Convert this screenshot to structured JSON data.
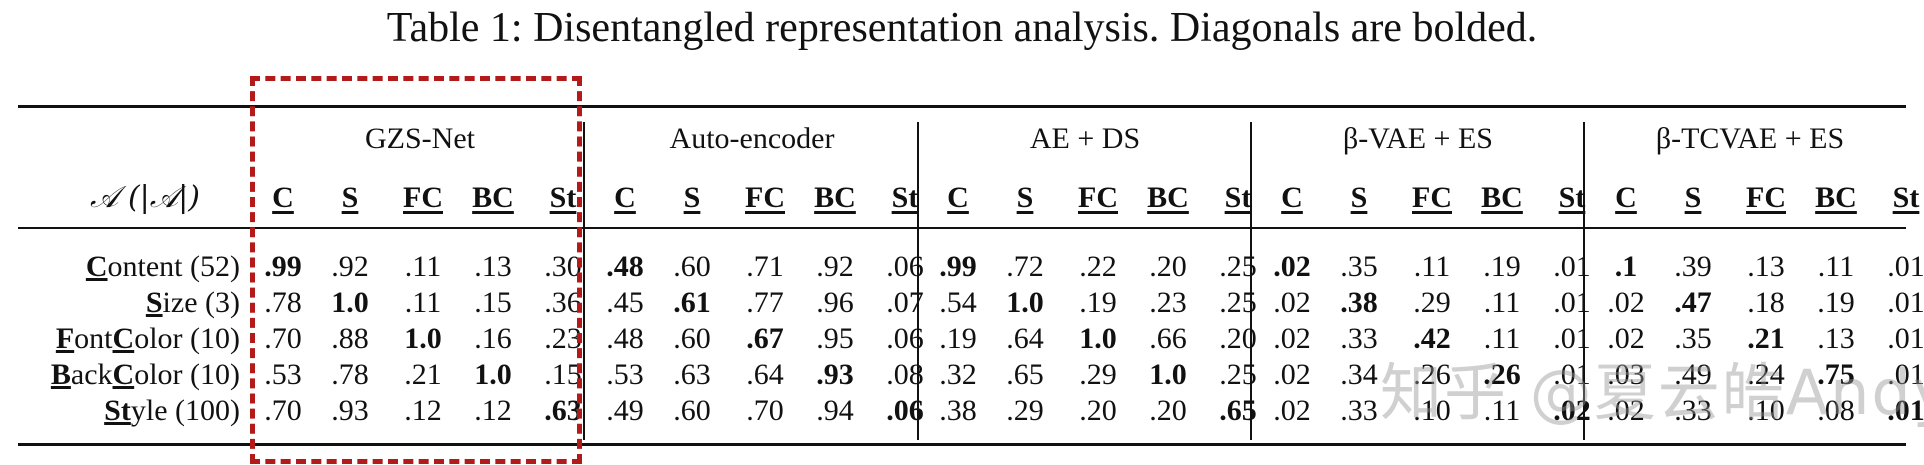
{
  "caption": "Table 1: Disentangled representation analysis. Diagonals are bolded.",
  "row_header": "𝒜 (|𝒜|)",
  "groups": [
    {
      "name": "GZS-Net"
    },
    {
      "name": "Auto-encoder"
    },
    {
      "name": "AE + DS"
    },
    {
      "name": "β-VAE + ES"
    },
    {
      "name": "β-TCVAE + ES"
    }
  ],
  "column_labels": [
    "C",
    "S",
    "FC",
    "BC",
    "St"
  ],
  "rows": [
    {
      "prefix": "C",
      "rest": "ontent (52)",
      "label": "Content (52)",
      "values": [
        [
          ".99",
          ".92",
          ".11",
          ".13",
          ".30"
        ],
        [
          ".48",
          ".60",
          ".71",
          ".92",
          ".06"
        ],
        [
          ".99",
          ".72",
          ".22",
          ".20",
          ".25"
        ],
        [
          ".02",
          ".35",
          ".11",
          ".19",
          ".01"
        ],
        [
          ".1",
          ".39",
          ".13",
          ".11",
          ".01"
        ]
      ]
    },
    {
      "prefix": "S",
      "rest": "ize (3)",
      "label": "Size (3)",
      "values": [
        [
          ".78",
          "1.0",
          ".11",
          ".15",
          ".36"
        ],
        [
          ".45",
          ".61",
          ".77",
          ".96",
          ".07"
        ],
        [
          ".54",
          "1.0",
          ".19",
          ".23",
          ".25"
        ],
        [
          ".02",
          ".38",
          ".29",
          ".11",
          ".01"
        ],
        [
          ".02",
          ".47",
          ".18",
          ".19",
          ".01"
        ]
      ]
    },
    {
      "prefix": "F",
      "rest": "ont",
      "prefix2": "C",
      "rest2": "olor (10)",
      "label": "FontColor (10)",
      "values": [
        [
          ".70",
          ".88",
          "1.0",
          ".16",
          ".23"
        ],
        [
          ".48",
          ".60",
          ".67",
          ".95",
          ".06"
        ],
        [
          ".19",
          ".64",
          "1.0",
          ".66",
          ".20"
        ],
        [
          ".02",
          ".33",
          ".42",
          ".11",
          ".01"
        ],
        [
          ".02",
          ".35",
          ".21",
          ".13",
          ".01"
        ]
      ]
    },
    {
      "prefix": "B",
      "rest": "ack",
      "prefix2": "C",
      "rest2": "olor (10)",
      "label": "BackColor (10)",
      "values": [
        [
          ".53",
          ".78",
          ".21",
          "1.0",
          ".15"
        ],
        [
          ".53",
          ".63",
          ".64",
          ".93",
          ".08"
        ],
        [
          ".32",
          ".65",
          ".29",
          "1.0",
          ".25"
        ],
        [
          ".02",
          ".34",
          ".26",
          ".26",
          ".01"
        ],
        [
          ".03",
          ".49",
          ".24",
          ".75",
          ".01"
        ]
      ]
    },
    {
      "prefix": "St",
      "rest": "yle (100)",
      "label": "Style (100)",
      "values": [
        [
          ".70",
          ".93",
          ".12",
          ".12",
          ".63"
        ],
        [
          ".49",
          ".60",
          ".70",
          ".94",
          ".06"
        ],
        [
          ".38",
          ".29",
          ".20",
          ".20",
          ".65"
        ],
        [
          ".02",
          ".33",
          ".10",
          ".11",
          ".02"
        ],
        [
          ".02",
          ".33",
          ".10",
          ".08",
          ".01"
        ]
      ]
    }
  ],
  "watermark": "知乎 @夏云皓Andy",
  "highlight_color": "#b31b1b"
}
